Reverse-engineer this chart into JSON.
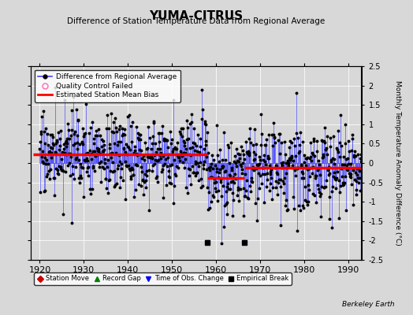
{
  "title": "YUMA-CITRUS",
  "subtitle": "Difference of Station Temperature Data from Regional Average",
  "ylabel_right": "Monthly Temperature Anomaly Difference (°C)",
  "xlim": [
    1918,
    1993
  ],
  "ylim": [
    -2.5,
    2.5
  ],
  "yticks": [
    -2.5,
    -2,
    -1.5,
    -1,
    -0.5,
    0,
    0.5,
    1,
    1.5,
    2,
    2.5
  ],
  "ytick_labels_right": [
    "-2.5",
    "-2",
    "-1.5",
    "-1",
    "-0.5",
    "0",
    "0.5",
    "1",
    "1.5",
    "2",
    "2.5"
  ],
  "xticks": [
    1920,
    1930,
    1940,
    1950,
    1960,
    1970,
    1980,
    1990
  ],
  "background_color": "#d8d8d8",
  "plot_bg_color": "#d8d8d8",
  "line_color": "#4444ff",
  "dot_color": "#000000",
  "bias_color": "#ff0000",
  "watermark": "Berkeley Earth",
  "segments": [
    {
      "start": 1918.5,
      "end": 1958.0,
      "bias": 0.22
    },
    {
      "start": 1958.0,
      "end": 1966.5,
      "bias": -0.38
    },
    {
      "start": 1966.5,
      "end": 1993.0,
      "bias": -0.12
    }
  ],
  "time_of_obs_changes": [
    1958.0,
    1966.5
  ],
  "empirical_breaks": [
    1958.0,
    1966.5
  ],
  "noise_std": 0.52,
  "seed": 17
}
